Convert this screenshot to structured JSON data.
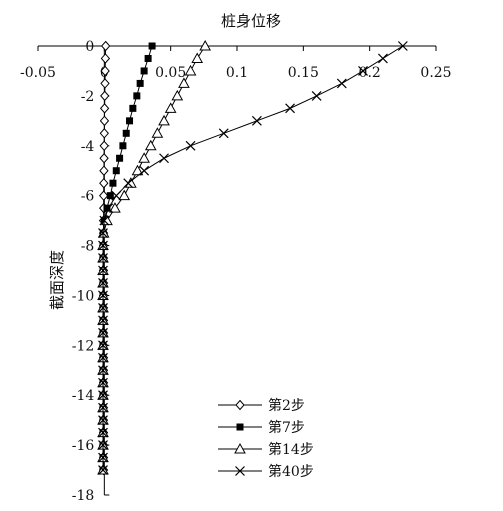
{
  "chart_data": {
    "type": "line",
    "title": "桩身位移",
    "xlabel": "",
    "ylabel": "截面深度",
    "xlim": [
      -0.05,
      0.25
    ],
    "ylim": [
      0,
      -18
    ],
    "x_axis_position": "top",
    "x_ticks": [
      -0.05,
      0,
      0.05,
      0.1,
      0.15,
      0.2,
      0.25
    ],
    "x_tick_labels": [
      "-0.05",
      "0",
      "0.05",
      "0.1",
      "0.15",
      "0.2",
      "0.25"
    ],
    "y_ticks": [
      0,
      -2,
      -4,
      -6,
      -8,
      -10,
      -12,
      -14,
      -16,
      -18
    ],
    "y_tick_labels": [
      "0",
      "-2",
      "-4",
      "-6",
      "-8",
      "-10",
      "-12",
      "-14",
      "-16",
      "-18"
    ],
    "grid": false,
    "legend_position": "bottom-right",
    "series": [
      {
        "name": "第2步",
        "marker": "diamond-open",
        "points": [
          [
            0.001,
            0
          ],
          [
            0.0008,
            -0.5
          ],
          [
            0.0006,
            -1
          ],
          [
            0.0005,
            -1.5
          ],
          [
            0.0003,
            -2
          ],
          [
            0.0002,
            -2.5
          ],
          [
            0.0001,
            -3
          ],
          [
            0.0,
            -3.5
          ],
          [
            -0.0001,
            -4
          ],
          [
            -0.0002,
            -4.5
          ],
          [
            -0.0003,
            -5
          ],
          [
            -0.0004,
            -5.5
          ],
          [
            -0.0005,
            -6
          ],
          [
            -0.0005,
            -6.5
          ],
          [
            -0.0006,
            -7
          ],
          [
            -0.0006,
            -7.5
          ],
          [
            -0.0006,
            -8
          ],
          [
            -0.0006,
            -8.5
          ],
          [
            -0.0006,
            -9
          ],
          [
            -0.0006,
            -9.5
          ],
          [
            -0.0006,
            -10
          ],
          [
            -0.0006,
            -10.5
          ],
          [
            -0.0006,
            -11
          ],
          [
            -0.0006,
            -11.5
          ],
          [
            -0.0006,
            -12
          ],
          [
            -0.0006,
            -12.5
          ],
          [
            -0.0006,
            -13
          ],
          [
            -0.0006,
            -13.5
          ],
          [
            -0.0006,
            -14
          ],
          [
            -0.0006,
            -14.5
          ],
          [
            -0.0006,
            -15
          ],
          [
            -0.0006,
            -15.5
          ],
          [
            -0.0006,
            -16
          ],
          [
            -0.0006,
            -16.5
          ],
          [
            -0.0006,
            -17
          ]
        ]
      },
      {
        "name": "第7步",
        "marker": "square-filled",
        "points": [
          [
            0.036,
            0
          ],
          [
            0.033,
            -0.5
          ],
          [
            0.03,
            -1
          ],
          [
            0.027,
            -1.5
          ],
          [
            0.0245,
            -2
          ],
          [
            0.0215,
            -2.5
          ],
          [
            0.019,
            -3
          ],
          [
            0.0165,
            -3.5
          ],
          [
            0.014,
            -4
          ],
          [
            0.0115,
            -4.5
          ],
          [
            0.009,
            -5
          ],
          [
            0.0065,
            -5.5
          ],
          [
            0.0045,
            -6
          ],
          [
            0.002,
            -6.5
          ],
          [
            0.0,
            -7
          ],
          [
            -0.0008,
            -7.5
          ],
          [
            -0.001,
            -8
          ],
          [
            -0.001,
            -8.5
          ],
          [
            -0.001,
            -9
          ],
          [
            -0.001,
            -9.5
          ],
          [
            -0.001,
            -10
          ],
          [
            -0.001,
            -10.5
          ],
          [
            -0.001,
            -11
          ],
          [
            -0.001,
            -11.5
          ],
          [
            -0.001,
            -12
          ],
          [
            -0.001,
            -12.5
          ],
          [
            -0.001,
            -13
          ],
          [
            -0.001,
            -13.5
          ],
          [
            -0.001,
            -14
          ],
          [
            -0.001,
            -14.5
          ],
          [
            -0.001,
            -15
          ],
          [
            -0.001,
            -15.5
          ],
          [
            -0.001,
            -16
          ],
          [
            -0.001,
            -16.5
          ],
          [
            -0.001,
            -17
          ]
        ]
      },
      {
        "name": "第14步",
        "marker": "triangle-open",
        "points": [
          [
            0.076,
            0
          ],
          [
            0.07,
            -0.5
          ],
          [
            0.065,
            -1
          ],
          [
            0.06,
            -1.5
          ],
          [
            0.055,
            -2
          ],
          [
            0.05,
            -2.5
          ],
          [
            0.045,
            -3
          ],
          [
            0.04,
            -3.5
          ],
          [
            0.035,
            -4
          ],
          [
            0.03,
            -4.5
          ],
          [
            0.025,
            -5
          ],
          [
            0.02,
            -5.5
          ],
          [
            0.015,
            -6
          ],
          [
            0.008,
            -6.5
          ],
          [
            0.002,
            -7
          ],
          [
            -0.0005,
            -7.5
          ],
          [
            -0.001,
            -8
          ],
          [
            -0.001,
            -8.5
          ],
          [
            -0.001,
            -9
          ],
          [
            -0.001,
            -9.5
          ],
          [
            -0.001,
            -10
          ],
          [
            -0.001,
            -10.5
          ],
          [
            -0.001,
            -11
          ],
          [
            -0.001,
            -11.5
          ],
          [
            -0.001,
            -12
          ],
          [
            -0.001,
            -12.5
          ],
          [
            -0.001,
            -13
          ],
          [
            -0.001,
            -13.5
          ],
          [
            -0.001,
            -14
          ],
          [
            -0.001,
            -14.5
          ],
          [
            -0.001,
            -15
          ],
          [
            -0.001,
            -15.5
          ],
          [
            -0.001,
            -16
          ],
          [
            -0.001,
            -16.5
          ],
          [
            -0.001,
            -17
          ]
        ]
      },
      {
        "name": "第40步",
        "marker": "x",
        "points": [
          [
            0.225,
            0
          ],
          [
            0.21,
            -0.5
          ],
          [
            0.195,
            -1
          ],
          [
            0.179,
            -1.5
          ],
          [
            0.16,
            -2
          ],
          [
            0.14,
            -2.5
          ],
          [
            0.115,
            -3
          ],
          [
            0.09,
            -3.5
          ],
          [
            0.065,
            -4
          ],
          [
            0.045,
            -4.5
          ],
          [
            0.03,
            -5
          ],
          [
            0.018,
            -5.5
          ],
          [
            0.009,
            -6
          ],
          [
            0.003,
            -6.5
          ],
          [
            0.0,
            -7
          ],
          [
            -0.001,
            -7.5
          ],
          [
            -0.001,
            -8
          ],
          [
            -0.001,
            -8.5
          ],
          [
            -0.001,
            -9
          ],
          [
            -0.001,
            -9.5
          ],
          [
            -0.001,
            -10
          ],
          [
            -0.001,
            -10.5
          ],
          [
            -0.001,
            -11
          ],
          [
            -0.001,
            -11.5
          ],
          [
            -0.001,
            -12
          ],
          [
            -0.001,
            -12.5
          ],
          [
            -0.001,
            -13
          ],
          [
            -0.001,
            -13.5
          ],
          [
            -0.001,
            -14
          ],
          [
            -0.001,
            -14.5
          ],
          [
            -0.001,
            -15
          ],
          [
            -0.001,
            -15.5
          ],
          [
            -0.001,
            -16
          ],
          [
            -0.001,
            -16.5
          ],
          [
            -0.001,
            -17
          ]
        ]
      }
    ]
  }
}
